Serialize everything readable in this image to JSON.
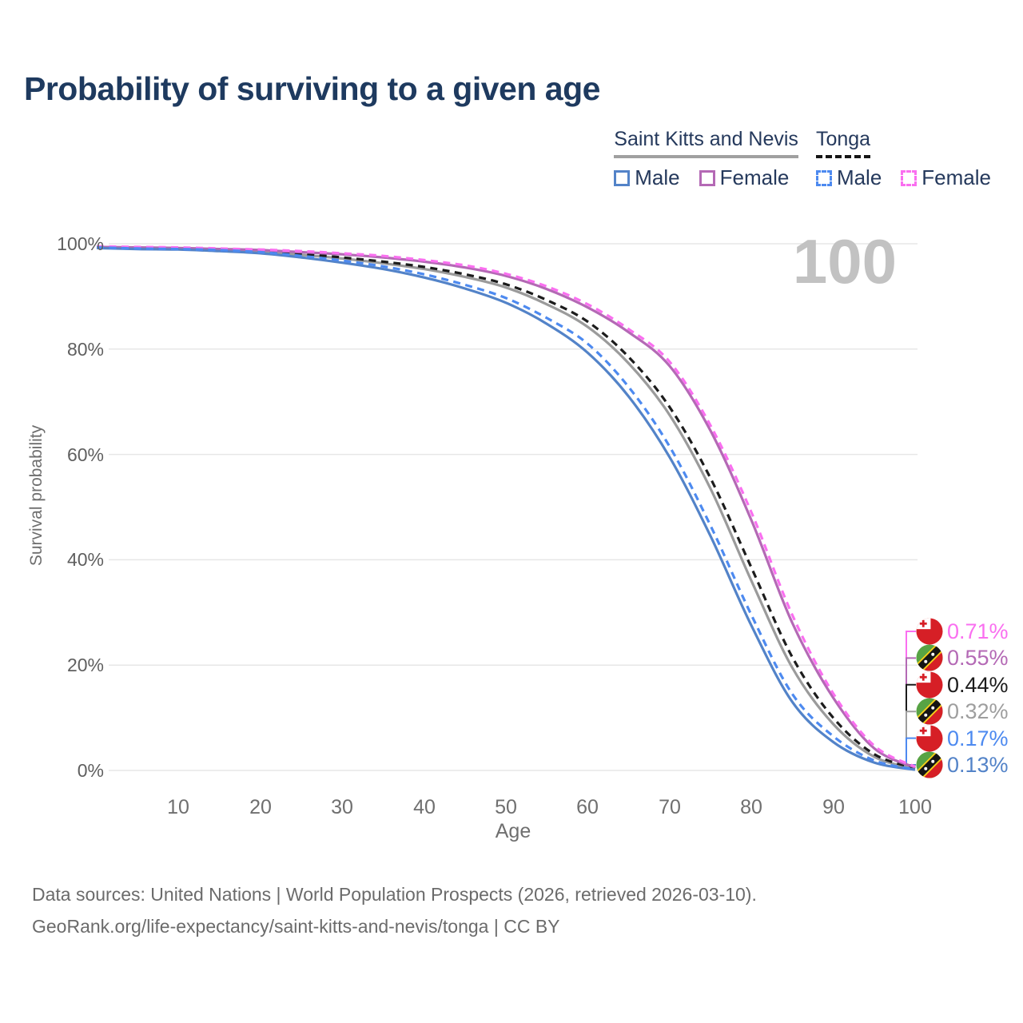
{
  "header": {
    "title": "Probability of surviving to a given age"
  },
  "legend": {
    "groups": [
      {
        "name": "Saint Kitts and Nevis",
        "underline_style": "solid",
        "underline_color": "#a0a0a0",
        "items": [
          {
            "label": "Male",
            "series_key": "skn-male"
          },
          {
            "label": "Female",
            "series_key": "skn-female"
          }
        ]
      },
      {
        "name": "Tonga",
        "underline_style": "dashed",
        "underline_color": "#151515",
        "items": [
          {
            "label": "Male",
            "series_key": "tonga-male"
          },
          {
            "label": "Female",
            "series_key": "tonga-female"
          }
        ]
      }
    ]
  },
  "chart_data": {
    "type": "line",
    "title": "Probability of surviving to a given age",
    "xlabel": "Age",
    "ylabel": "Survival probability",
    "xlim": [
      0,
      100
    ],
    "ylim": [
      0,
      100
    ],
    "grid": "horizontal",
    "age_marker": "100",
    "x_ticks": [
      10,
      20,
      30,
      40,
      50,
      60,
      70,
      80,
      90,
      100
    ],
    "y_ticks": [
      "0%",
      "20%",
      "40%",
      "60%",
      "80%",
      "100%"
    ],
    "x": [
      0,
      5,
      10,
      15,
      20,
      25,
      30,
      35,
      40,
      45,
      50,
      55,
      60,
      65,
      70,
      75,
      80,
      85,
      90,
      95,
      100
    ],
    "series": [
      {
        "key": "skn-total",
        "name": "Saint Kitts and Nevis — Both sexes",
        "color": "#9b9b9b",
        "dashed": false,
        "values": [
          99.3,
          99.1,
          99.0,
          98.8,
          98.5,
          97.9,
          97.2,
          96.3,
          95.2,
          93.7,
          91.7,
          88.5,
          84.2,
          77.3,
          67.5,
          53.5,
          36.0,
          19.5,
          8.8,
          2.6,
          0.32
        ]
      },
      {
        "key": "tonga-total",
        "name": "Tonga — Both sexes",
        "color": "#1c1c1c",
        "dashed": true,
        "values": [
          99.4,
          99.2,
          99.1,
          98.9,
          98.6,
          98.1,
          97.4,
          96.6,
          95.6,
          94.2,
          92.3,
          89.3,
          85.2,
          78.5,
          69.0,
          55.5,
          38.5,
          21.5,
          10.0,
          3.1,
          0.44
        ]
      },
      {
        "key": "skn-female",
        "name": "Saint Kitts and Nevis — Female",
        "color": "#b469b5",
        "dashed": false,
        "values": [
          99.4,
          99.3,
          99.2,
          99.0,
          98.8,
          98.4,
          98.0,
          97.4,
          96.6,
          95.5,
          93.9,
          91.4,
          87.9,
          83.2,
          76.8,
          64.5,
          47.5,
          28.0,
          13.8,
          4.2,
          0.55
        ]
      },
      {
        "key": "tonga-female",
        "name": "Tonga — Female",
        "color": "#fa6ff0",
        "dashed": true,
        "values": [
          99.5,
          99.4,
          99.3,
          99.1,
          98.9,
          98.6,
          98.2,
          97.7,
          96.9,
          95.9,
          94.3,
          91.9,
          88.5,
          83.8,
          77.6,
          65.5,
          49.0,
          29.5,
          14.6,
          4.7,
          0.71
        ]
      },
      {
        "key": "skn-male",
        "name": "Saint Kitts and Nevis — Male",
        "color": "#5383c8",
        "dashed": false,
        "values": [
          99.2,
          99.0,
          98.9,
          98.6,
          98.2,
          97.4,
          96.4,
          95.2,
          93.6,
          91.5,
          88.8,
          84.8,
          79.3,
          71.0,
          59.5,
          44.5,
          27.5,
          13.0,
          5.4,
          1.5,
          0.13
        ]
      },
      {
        "key": "tonga-male",
        "name": "Tonga — Male",
        "color": "#4d8af0",
        "dashed": true,
        "values": [
          99.3,
          99.1,
          99.0,
          98.8,
          98.4,
          97.7,
          96.8,
          95.7,
          94.2,
          92.2,
          89.7,
          85.9,
          81.0,
          72.8,
          61.5,
          46.5,
          29.5,
          14.5,
          6.5,
          1.9,
          0.17
        ]
      }
    ],
    "end_labels": [
      {
        "flag": "tonga",
        "country": "Tonga",
        "text": "0.71%",
        "color": "#fa6ff0"
      },
      {
        "flag": "skn",
        "country": "Saint Kitts and Nevis",
        "text": "0.55%",
        "color": "#b469b5"
      },
      {
        "flag": "tonga",
        "country": "Tonga",
        "text": "0.44%",
        "color": "#1c1c1c"
      },
      {
        "flag": "skn",
        "country": "Saint Kitts and Nevis",
        "text": "0.32%",
        "color": "#9e9e9e"
      },
      {
        "flag": "tonga",
        "country": "Tonga",
        "text": "0.17%",
        "color": "#4d8af0"
      },
      {
        "flag": "skn",
        "country": "Saint Kitts and Nevis",
        "text": "0.13%",
        "color": "#5383c8"
      }
    ]
  },
  "footer": {
    "line1": "Data sources: United Nations | World Population Prospects (2026, retrieved 2026-03-10).",
    "line2": "GeoRank.org/life-expectancy/saint-kitts-and-nevis/tonga | CC BY"
  }
}
